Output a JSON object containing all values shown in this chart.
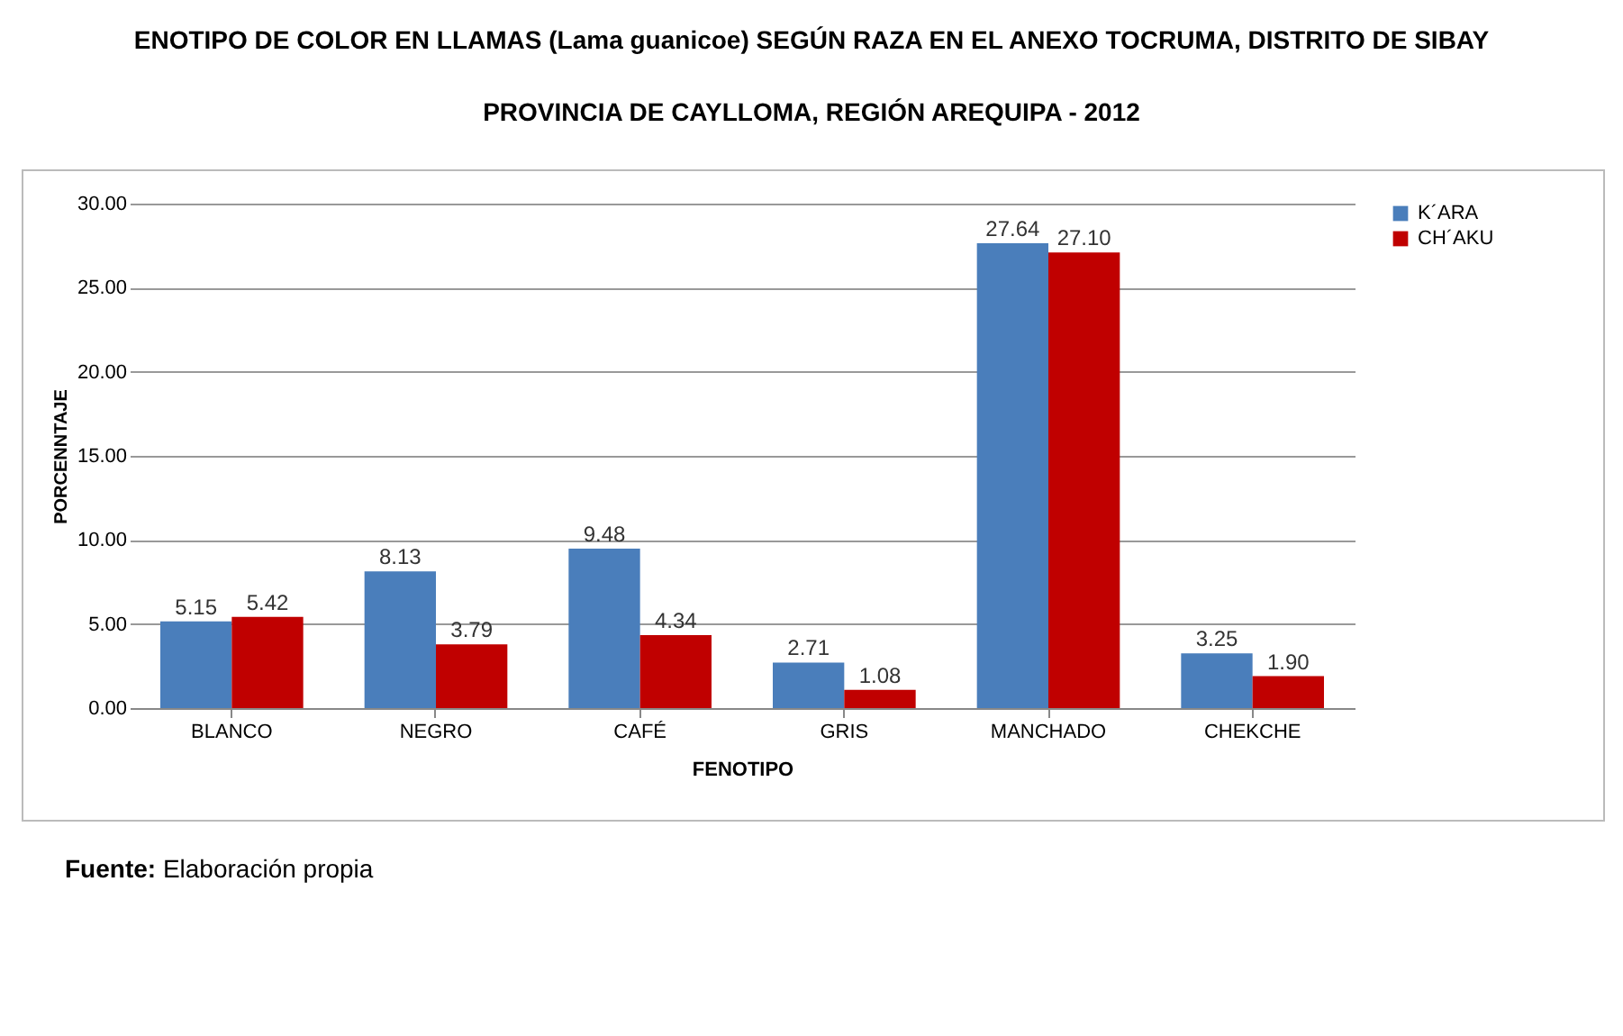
{
  "chart_data": {
    "type": "bar",
    "title": "ENOTIPO DE COLOR EN LLAMAS (Lama guanicoe) SEGÚN RAZA EN EL ANEXO TOCRUMA, DISTRITO DE SIBAY\nPROVINCIA DE CAYLLOMA, REGIÓN AREQUIPA - 2012",
    "xlabel": "FENOTIPO",
    "ylabel": "PORCENNTAJE",
    "categories": [
      "BLANCO",
      "NEGRO",
      "CAFÉ",
      "GRIS",
      "MANCHADO",
      "CHEKCHE"
    ],
    "series": [
      {
        "name": "K´ARA",
        "color": "#4a7ebb",
        "values": [
          5.15,
          8.13,
          9.48,
          2.71,
          27.64,
          3.25
        ],
        "value_labels": [
          "5.15",
          "8.13",
          "9.48",
          "2.71",
          "27.64",
          "3.25"
        ]
      },
      {
        "name": "CH´AKU",
        "color": "#c00000",
        "values": [
          5.42,
          3.79,
          4.34,
          1.08,
          27.1,
          1.9
        ],
        "value_labels": [
          "5.42",
          "3.79",
          "4.34",
          "1.08",
          "27.10",
          "1.90"
        ]
      }
    ],
    "ylim": [
      0,
      30
    ],
    "yticks": [
      {
        "value": 0,
        "label": "0.00"
      },
      {
        "value": 5,
        "label": "5.00"
      },
      {
        "value": 10,
        "label": "10.00"
      },
      {
        "value": 15,
        "label": "15.00"
      },
      {
        "value": 20,
        "label": "20.00"
      },
      {
        "value": 25,
        "label": "25.00"
      },
      {
        "value": 30,
        "label": "30.00"
      }
    ],
    "grid": "y",
    "legend": "right",
    "annotations": [
      "Fuente: Elaboración propia"
    ]
  }
}
